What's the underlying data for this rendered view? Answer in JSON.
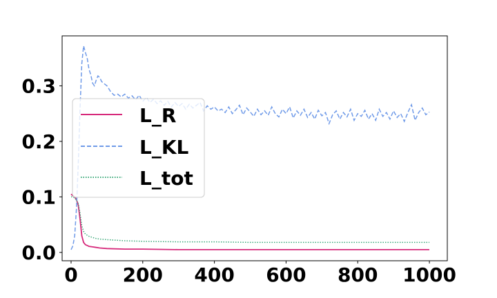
{
  "chart_data": {
    "type": "line",
    "title": "",
    "xlabel": "",
    "ylabel": "",
    "xlim": [
      -25,
      1050
    ],
    "ylim": [
      -0.015,
      0.39
    ],
    "xticks": [
      0,
      200,
      400,
      600,
      800,
      1000
    ],
    "xtick_labels": [
      "0",
      "200",
      "400",
      "600",
      "800",
      "1000"
    ],
    "yticks": [
      0.0,
      0.1,
      0.2,
      0.3
    ],
    "ytick_labels": [
      "0.0",
      "0.1",
      "0.2",
      "0.3"
    ],
    "grid": false,
    "legend_position": "center-left",
    "series": [
      {
        "name": "L_R",
        "color": "#d6287a",
        "style": "solid",
        "points": [
          [
            0,
            0.105
          ],
          [
            5,
            0.102
          ],
          [
            10,
            0.1
          ],
          [
            15,
            0.095
          ],
          [
            20,
            0.085
          ],
          [
            25,
            0.06
          ],
          [
            30,
            0.03
          ],
          [
            35,
            0.018
          ],
          [
            40,
            0.014
          ],
          [
            50,
            0.011
          ],
          [
            60,
            0.01
          ],
          [
            70,
            0.009
          ],
          [
            80,
            0.008
          ],
          [
            100,
            0.007
          ],
          [
            150,
            0.006
          ],
          [
            200,
            0.006
          ],
          [
            300,
            0.005
          ],
          [
            400,
            0.005
          ],
          [
            500,
            0.005
          ],
          [
            600,
            0.005
          ],
          [
            700,
            0.005
          ],
          [
            800,
            0.005
          ],
          [
            900,
            0.005
          ],
          [
            1000,
            0.005
          ]
        ]
      },
      {
        "name": "L_KL",
        "color": "#6f9ae8",
        "style": "dashed",
        "points": [
          [
            0,
            0.005
          ],
          [
            5,
            0.012
          ],
          [
            10,
            0.03
          ],
          [
            15,
            0.08
          ],
          [
            20,
            0.16
          ],
          [
            25,
            0.26
          ],
          [
            30,
            0.34
          ],
          [
            35,
            0.372
          ],
          [
            40,
            0.36
          ],
          [
            45,
            0.35
          ],
          [
            50,
            0.33
          ],
          [
            55,
            0.32
          ],
          [
            60,
            0.305
          ],
          [
            65,
            0.3
          ],
          [
            70,
            0.31
          ],
          [
            75,
            0.318
          ],
          [
            80,
            0.315
          ],
          [
            85,
            0.308
          ],
          [
            90,
            0.305
          ],
          [
            100,
            0.3
          ],
          [
            110,
            0.29
          ],
          [
            120,
            0.283
          ],
          [
            130,
            0.285
          ],
          [
            140,
            0.28
          ],
          [
            150,
            0.285
          ],
          [
            160,
            0.278
          ],
          [
            170,
            0.282
          ],
          [
            180,
            0.275
          ],
          [
            190,
            0.283
          ],
          [
            200,
            0.272
          ],
          [
            210,
            0.279
          ],
          [
            220,
            0.27
          ],
          [
            230,
            0.276
          ],
          [
            240,
            0.268
          ],
          [
            250,
            0.273
          ],
          [
            260,
            0.265
          ],
          [
            270,
            0.272
          ],
          [
            280,
            0.262
          ],
          [
            290,
            0.27
          ],
          [
            300,
            0.263
          ],
          [
            310,
            0.268
          ],
          [
            320,
            0.258
          ],
          [
            330,
            0.267
          ],
          [
            340,
            0.26
          ],
          [
            350,
            0.265
          ],
          [
            360,
            0.27
          ],
          [
            370,
            0.255
          ],
          [
            380,
            0.264
          ],
          [
            390,
            0.258
          ],
          [
            400,
            0.262
          ],
          [
            410,
            0.255
          ],
          [
            420,
            0.258
          ],
          [
            430,
            0.252
          ],
          [
            440,
            0.262
          ],
          [
            450,
            0.25
          ],
          [
            460,
            0.257
          ],
          [
            470,
            0.265
          ],
          [
            480,
            0.248
          ],
          [
            490,
            0.26
          ],
          [
            500,
            0.253
          ],
          [
            510,
            0.245
          ],
          [
            520,
            0.258
          ],
          [
            530,
            0.248
          ],
          [
            540,
            0.255
          ],
          [
            550,
            0.247
          ],
          [
            560,
            0.262
          ],
          [
            570,
            0.25
          ],
          [
            580,
            0.244
          ],
          [
            590,
            0.258
          ],
          [
            600,
            0.25
          ],
          [
            610,
            0.262
          ],
          [
            620,
            0.242
          ],
          [
            630,
            0.255
          ],
          [
            640,
            0.247
          ],
          [
            650,
            0.258
          ],
          [
            660,
            0.243
          ],
          [
            670,
            0.252
          ],
          [
            680,
            0.24
          ],
          [
            690,
            0.256
          ],
          [
            700,
            0.246
          ],
          [
            710,
            0.252
          ],
          [
            720,
            0.232
          ],
          [
            730,
            0.248
          ],
          [
            740,
            0.255
          ],
          [
            750,
            0.24
          ],
          [
            760,
            0.252
          ],
          [
            770,
            0.244
          ],
          [
            780,
            0.258
          ],
          [
            790,
            0.238
          ],
          [
            800,
            0.25
          ],
          [
            810,
            0.245
          ],
          [
            820,
            0.256
          ],
          [
            830,
            0.24
          ],
          [
            840,
            0.25
          ],
          [
            850,
            0.238
          ],
          [
            860,
            0.258
          ],
          [
            870,
            0.245
          ],
          [
            880,
            0.252
          ],
          [
            890,
            0.24
          ],
          [
            900,
            0.255
          ],
          [
            910,
            0.243
          ],
          [
            920,
            0.25
          ],
          [
            930,
            0.236
          ],
          [
            940,
            0.252
          ],
          [
            950,
            0.266
          ],
          [
            960,
            0.238
          ],
          [
            970,
            0.252
          ],
          [
            980,
            0.26
          ],
          [
            990,
            0.248
          ],
          [
            1000,
            0.253
          ]
        ]
      },
      {
        "name": "L_tot",
        "color": "#3aa878",
        "style": "dotted",
        "points": [
          [
            0,
            0.1
          ],
          [
            5,
            0.1
          ],
          [
            10,
            0.098
          ],
          [
            15,
            0.094
          ],
          [
            20,
            0.088
          ],
          [
            25,
            0.07
          ],
          [
            30,
            0.048
          ],
          [
            35,
            0.038
          ],
          [
            40,
            0.033
          ],
          [
            50,
            0.029
          ],
          [
            60,
            0.027
          ],
          [
            70,
            0.025
          ],
          [
            80,
            0.024
          ],
          [
            100,
            0.023
          ],
          [
            150,
            0.021
          ],
          [
            200,
            0.02
          ],
          [
            300,
            0.019
          ],
          [
            400,
            0.019
          ],
          [
            500,
            0.018
          ],
          [
            600,
            0.018
          ],
          [
            700,
            0.018
          ],
          [
            800,
            0.018
          ],
          [
            900,
            0.018
          ],
          [
            1000,
            0.018
          ]
        ]
      }
    ]
  }
}
